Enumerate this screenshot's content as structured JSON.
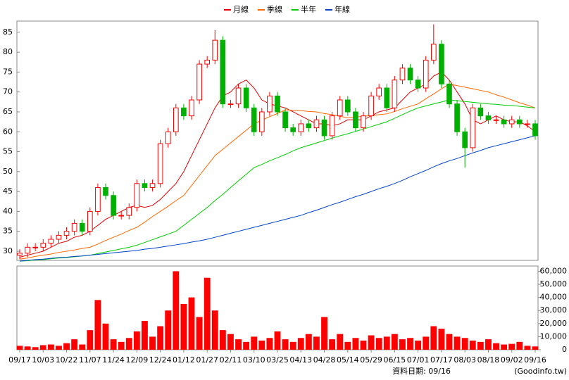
{
  "chart_data": [
    {
      "type": "candlestick",
      "categories": [
        "09/17",
        null,
        null,
        "10/03",
        null,
        null,
        "10/22",
        null,
        null,
        "11/07",
        null,
        null,
        "11/24",
        null,
        null,
        "12/09",
        null,
        null,
        "12/24",
        null,
        null,
        "01/12",
        null,
        null,
        "01/27",
        null,
        null,
        "02/11",
        null,
        null,
        "03/10",
        null,
        null,
        "03/25",
        null,
        null,
        "04/13",
        null,
        null,
        "04/28",
        null,
        null,
        "05/14",
        null,
        null,
        "05/29",
        null,
        null,
        "06/15",
        null,
        null,
        "07/01",
        null,
        null,
        "07/17",
        null,
        null,
        "08/03",
        null,
        null,
        "08/18",
        null,
        null,
        "09/02",
        null,
        null,
        "09/16"
      ],
      "open": [
        29,
        29.5,
        31,
        31,
        32,
        33,
        34,
        35,
        37,
        35,
        40,
        46,
        44,
        39,
        39,
        41,
        47,
        46,
        47,
        57,
        60,
        66,
        64,
        68,
        77,
        78,
        83,
        67,
        67,
        71,
        66,
        60,
        65,
        69,
        65,
        61,
        60,
        62,
        61,
        63,
        59,
        64,
        68,
        65,
        61,
        64,
        69,
        71,
        66,
        73,
        76,
        73,
        71,
        78,
        82,
        72,
        67,
        60,
        56,
        66,
        64,
        63,
        63,
        62,
        63,
        62,
        62
      ],
      "high": [
        30.5,
        32,
        32,
        33,
        34,
        35,
        36,
        38,
        38,
        41,
        47,
        47,
        45,
        40,
        42,
        48,
        48,
        48,
        58,
        61,
        67,
        67,
        69,
        78,
        79,
        85.5,
        84,
        68,
        72,
        72,
        67,
        66,
        70,
        70,
        66,
        62,
        63,
        63,
        64,
        64,
        65,
        69,
        69,
        66,
        65,
        70,
        72,
        72,
        74,
        77,
        77,
        74,
        79,
        87,
        83,
        73,
        68,
        61,
        67,
        67,
        65,
        64,
        64,
        64,
        64,
        63,
        63
      ],
      "low": [
        28,
        28.5,
        30,
        30,
        31,
        32,
        33,
        34,
        34,
        34,
        39,
        43,
        38,
        38,
        38,
        40,
        45,
        45,
        46,
        56,
        59,
        63,
        63,
        67,
        76,
        77,
        66,
        66,
        66,
        65,
        59,
        59,
        64,
        64,
        60,
        59,
        59,
        60,
        60,
        58,
        58,
        63,
        64,
        60,
        60,
        63,
        68,
        65,
        65,
        72,
        72,
        70,
        70,
        77,
        71,
        66,
        59,
        51,
        55,
        63,
        62,
        62,
        61,
        61,
        61,
        61,
        58
      ],
      "close": [
        29.5,
        31,
        31,
        32,
        33,
        34,
        35,
        37,
        35,
        40,
        46,
        44,
        39,
        39,
        41,
        47,
        46,
        47,
        57,
        60,
        66,
        64,
        68,
        77,
        78,
        83,
        67,
        67,
        71,
        66,
        60,
        65,
        69,
        65,
        61,
        60,
        62,
        61,
        63,
        59,
        64,
        68,
        65,
        61,
        64,
        69,
        71,
        66,
        73,
        76,
        73,
        71,
        78,
        82,
        72,
        67,
        60,
        56,
        66,
        64,
        63,
        63,
        62,
        63,
        62,
        62,
        59
      ],
      "up_color": "#ff0000",
      "down_color": "#00b000",
      "series": [
        {
          "name": "月線",
          "color": "#e00000",
          "values": [
            28.5,
            29,
            29.5,
            30,
            31,
            32,
            32.5,
            33.5,
            34,
            35,
            36.5,
            38,
            39,
            40,
            41,
            41.5,
            41,
            41.5,
            43,
            45,
            47,
            50,
            54,
            58,
            62,
            66,
            69,
            70,
            72,
            73,
            71,
            68,
            67,
            66.5,
            66,
            65,
            64,
            63,
            62,
            62,
            61.5,
            62,
            63,
            63,
            63,
            64,
            65,
            65.5,
            66,
            68,
            70,
            71,
            72,
            74,
            75,
            73,
            70,
            67,
            63,
            62,
            63,
            64,
            63,
            62.5,
            62.5,
            61.5,
            60
          ]
        },
        {
          "name": "季線",
          "color": "#ff6600",
          "values": [
            28.0,
            28.3,
            28.7,
            29.0,
            29.3,
            29.7,
            30.0,
            30.3,
            30.7,
            31.0,
            31.8,
            32.7,
            33.5,
            34.3,
            35.2,
            36.0,
            37.3,
            38.7,
            40.0,
            41.3,
            42.7,
            44.0,
            46.5,
            49.0,
            51.5,
            54.0,
            55.6,
            57.2,
            58.8,
            60.4,
            62.0,
            62.9,
            63.8,
            64.6,
            65.5,
            65.4,
            65.3,
            65.1,
            65.0,
            64.6,
            64.3,
            63.9,
            63.5,
            63.7,
            63.9,
            64.1,
            64.3,
            64.5,
            65.1,
            65.8,
            66.4,
            67.0,
            68.3,
            69.5,
            70.8,
            72.0,
            71.6,
            71.2,
            70.8,
            70.4,
            70.0,
            69.3,
            68.7,
            68.0,
            67.3,
            66.7,
            66.0
          ]
        },
        {
          "name": "半年",
          "color": "#00cc00",
          "values": [
            27.5,
            27.6,
            27.8,
            27.9,
            28.1,
            28.3,
            28.4,
            28.6,
            28.8,
            29.0,
            29.4,
            29.8,
            30.2,
            30.6,
            31.0,
            31.5,
            32.2,
            32.9,
            33.6,
            34.3,
            35.0,
            36.5,
            38.0,
            39.5,
            41.0,
            42.7,
            44.3,
            46.0,
            47.7,
            49.3,
            51.0,
            51.8,
            52.7,
            53.5,
            54.3,
            55.2,
            56.0,
            56.6,
            57.2,
            57.8,
            58.4,
            59.0,
            59.5,
            60.1,
            60.7,
            61.3,
            61.9,
            62.5,
            63.4,
            64.3,
            65.2,
            66.0,
            66.5,
            67.0,
            67.5,
            68.0,
            67.8,
            67.6,
            67.4,
            67.2,
            67.0,
            66.9,
            66.7,
            66.6,
            66.4,
            66.2,
            66.0
          ]
        },
        {
          "name": "年線",
          "color": "#0044cc",
          "values": [
            27.5,
            27.7,
            27.9,
            28.0,
            28.2,
            28.4,
            28.5,
            28.7,
            28.8,
            29.0,
            29.2,
            29.4,
            29.6,
            29.8,
            30.0,
            30.2,
            30.5,
            30.7,
            31.0,
            31.3,
            31.6,
            31.9,
            32.3,
            32.6,
            33.0,
            33.5,
            34.0,
            34.5,
            35.0,
            35.5,
            36.0,
            36.5,
            37.0,
            37.5,
            38.0,
            38.5,
            39.0,
            39.7,
            40.3,
            41.0,
            41.7,
            42.3,
            43.0,
            43.7,
            44.3,
            45.0,
            45.7,
            46.3,
            47.0,
            47.8,
            48.7,
            49.5,
            50.3,
            51.2,
            52.0,
            52.7,
            53.3,
            54.0,
            54.7,
            55.3,
            56.0,
            56.5,
            57.0,
            57.5,
            58.0,
            58.5,
            59.0
          ]
        }
      ],
      "ylim": [
        27.7,
        87.8
      ],
      "yticks": [
        30,
        35,
        40,
        45,
        50,
        55,
        60,
        65,
        70,
        75,
        80,
        85
      ]
    },
    {
      "type": "bar",
      "color": "#ff0000",
      "values": [
        3000,
        2500,
        2000,
        3500,
        4000,
        3000,
        5000,
        8000,
        4000,
        15000,
        38000,
        20000,
        8000,
        6000,
        9000,
        14000,
        22000,
        10000,
        18000,
        30000,
        60000,
        35000,
        40000,
        25000,
        55000,
        30000,
        15000,
        12000,
        8000,
        6000,
        10000,
        7000,
        9000,
        14000,
        8000,
        6000,
        9000,
        12000,
        10000,
        25000,
        8000,
        12000,
        6000,
        9000,
        7000,
        11000,
        9000,
        10000,
        12000,
        8000,
        9000,
        7000,
        10000,
        18000,
        16000,
        12000,
        10000,
        9000,
        7000,
        6000,
        8000,
        5000,
        4000,
        4500,
        6000,
        3000,
        2500
      ],
      "ylim": [
        0,
        64000
      ],
      "yticks": [
        0,
        {
          "value": 10000,
          "label": "10,000"
        },
        {
          "value": 20000,
          "label": "20,000"
        },
        {
          "value": 30000,
          "label": "30,000"
        },
        {
          "value": 40000,
          "label": "40,000"
        },
        {
          "value": 50000,
          "label": "50,000"
        },
        {
          "value": 60000,
          "label": "60,000"
        }
      ],
      "footnote": "資料日期: 09/16",
      "source": "(Goodinfo.tw)"
    }
  ]
}
